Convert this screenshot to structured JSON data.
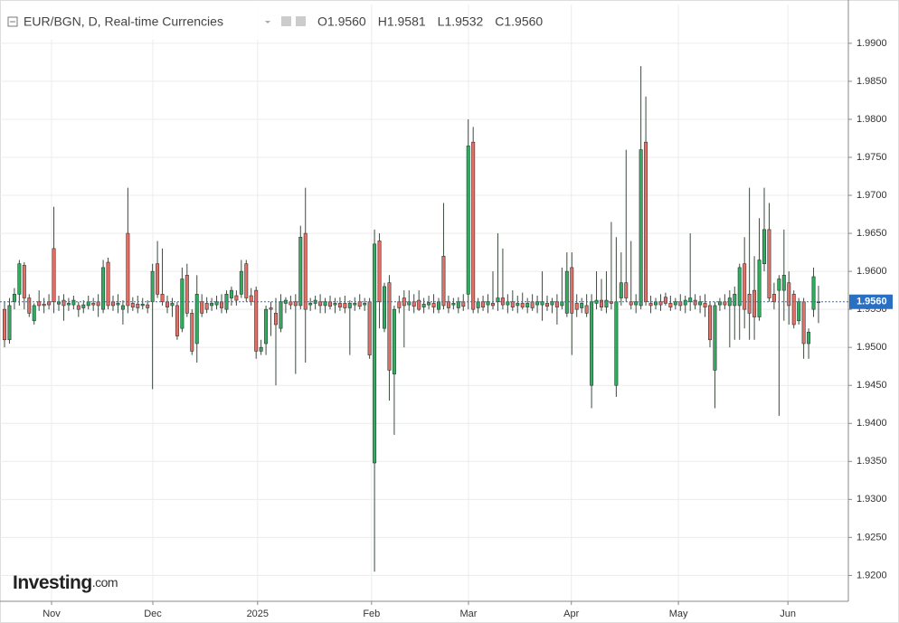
{
  "chart_data": {
    "type": "candlestick",
    "title": "EUR/BGN, D, Real-time Currencies",
    "header_values": [
      "O1.9560",
      "H1.9581",
      "L1.9532",
      "C1.9560"
    ],
    "logo": "Investing",
    "logo_suffix": ".com",
    "up_color": "#2fae5f",
    "down_color": "#e66f63",
    "grid": true,
    "last_price": {
      "value": 1.956,
      "label": "1.9560"
    },
    "xlim": [
      -0.917,
      171.05
    ],
    "xticks": [
      {
        "value": 9.53,
        "label": "Nov"
      },
      {
        "value": 30.07,
        "label": "Dec"
      },
      {
        "value": 51.3,
        "label": "2025"
      },
      {
        "value": 74.4,
        "label": "Feb"
      },
      {
        "value": 94.05,
        "label": "Mar"
      },
      {
        "value": 114.9,
        "label": "Apr"
      },
      {
        "value": 136.6,
        "label": "May"
      },
      {
        "value": 158.8,
        "label": "Jun"
      }
    ],
    "ylim": [
      1.9166,
      1.9951
    ],
    "yticks": [
      {
        "value": 1.92,
        "label": "1.9200"
      },
      {
        "value": 1.925,
        "label": "1.9250"
      },
      {
        "value": 1.93,
        "label": "1.9300"
      },
      {
        "value": 1.935,
        "label": "1.9350"
      },
      {
        "value": 1.94,
        "label": "1.9400"
      },
      {
        "value": 1.945,
        "label": "1.9450"
      },
      {
        "value": 1.95,
        "label": "1.9500"
      },
      {
        "value": 1.955,
        "label": "1.9550"
      },
      {
        "value": 1.96,
        "label": "1.9600"
      },
      {
        "value": 1.965,
        "label": "1.9650"
      },
      {
        "value": 1.97,
        "label": "1.9700"
      },
      {
        "value": 1.975,
        "label": "1.9750"
      },
      {
        "value": 1.98,
        "label": "1.9800"
      },
      {
        "value": 1.985,
        "label": "1.9850"
      },
      {
        "value": 1.99,
        "label": "1.9900"
      }
    ],
    "candles": [
      [
        1.955,
        1.956,
        1.95,
        1.951
      ],
      [
        1.951,
        1.9565,
        1.9505,
        1.9555
      ],
      [
        1.956,
        1.9578,
        1.955,
        1.957
      ],
      [
        1.957,
        1.9615,
        1.9555,
        1.961
      ],
      [
        1.9608,
        1.9612,
        1.955,
        1.9565
      ],
      [
        1.9565,
        1.957,
        1.954,
        1.9545
      ],
      [
        1.9535,
        1.9558,
        1.953,
        1.9555
      ],
      [
        1.956,
        1.9575,
        1.9548,
        1.9555
      ],
      [
        1.9557,
        1.9565,
        1.9545,
        1.9555
      ],
      [
        1.956,
        1.957,
        1.955,
        1.9556
      ],
      [
        1.963,
        1.9685,
        1.9545,
        1.956
      ],
      [
        1.9557,
        1.9568,
        1.9548,
        1.956
      ],
      [
        1.9562,
        1.957,
        1.9535,
        1.9555
      ],
      [
        1.9556,
        1.9565,
        1.9548,
        1.9558
      ],
      [
        1.9556,
        1.9568,
        1.955,
        1.9562
      ],
      [
        1.9555,
        1.956,
        1.954,
        1.955
      ],
      [
        1.9552,
        1.9562,
        1.9545,
        1.9556
      ],
      [
        1.9555,
        1.9568,
        1.955,
        1.956
      ],
      [
        1.9558,
        1.9565,
        1.9548,
        1.9556
      ],
      [
        1.956,
        1.957,
        1.954,
        1.9555
      ],
      [
        1.955,
        1.9615,
        1.9545,
        1.9605
      ],
      [
        1.9612,
        1.9618,
        1.955,
        1.9555
      ],
      [
        1.956,
        1.9568,
        1.9548,
        1.9555
      ],
      [
        1.9556,
        1.957,
        1.9545,
        1.9558
      ],
      [
        1.955,
        1.9562,
        1.953,
        1.9555
      ],
      [
        1.965,
        1.971,
        1.9545,
        1.9555
      ],
      [
        1.9558,
        1.9566,
        1.9548,
        1.9553
      ],
      [
        1.9557,
        1.9568,
        1.9545,
        1.9552
      ],
      [
        1.9555,
        1.9565,
        1.955,
        1.9557
      ],
      [
        1.9556,
        1.9562,
        1.9545,
        1.9552
      ],
      [
        1.956,
        1.961,
        1.9445,
        1.96
      ],
      [
        1.961,
        1.964,
        1.9565,
        1.957
      ],
      [
        1.957,
        1.963,
        1.9555,
        1.956
      ],
      [
        1.956,
        1.9568,
        1.9545,
        1.9553
      ],
      [
        1.9555,
        1.9565,
        1.954,
        1.9558
      ],
      [
        1.9555,
        1.956,
        1.951,
        1.9515
      ],
      [
        1.9525,
        1.9605,
        1.952,
        1.959
      ],
      [
        1.9595,
        1.961,
        1.954,
        1.9545
      ],
      [
        1.9545,
        1.955,
        1.949,
        1.9495
      ],
      [
        1.9505,
        1.9595,
        1.948,
        1.957
      ],
      [
        1.956,
        1.957,
        1.954,
        1.9545
      ],
      [
        1.9558,
        1.9566,
        1.9545,
        1.955
      ],
      [
        1.9555,
        1.9565,
        1.9548,
        1.9558
      ],
      [
        1.9556,
        1.9568,
        1.955,
        1.956
      ],
      [
        1.956,
        1.957,
        1.9545,
        1.9552
      ],
      [
        1.955,
        1.9575,
        1.9545,
        1.957
      ],
      [
        1.9565,
        1.958,
        1.9555,
        1.9575
      ],
      [
        1.9568,
        1.9575,
        1.9555,
        1.9562
      ],
      [
        1.957,
        1.9615,
        1.9565,
        1.96
      ],
      [
        1.961,
        1.9615,
        1.956,
        1.9565
      ],
      [
        1.9568,
        1.9578,
        1.9555,
        1.956
      ],
      [
        1.9575,
        1.958,
        1.9485,
        1.9495
      ],
      [
        1.9495,
        1.951,
        1.949,
        1.95
      ],
      [
        1.9505,
        1.9555,
        1.949,
        1.955
      ],
      [
        1.9552,
        1.956,
        1.9515,
        1.955
      ],
      [
        1.9545,
        1.9565,
        1.945,
        1.953
      ],
      [
        1.9525,
        1.957,
        1.952,
        1.956
      ],
      [
        1.9558,
        1.9566,
        1.9545,
        1.9562
      ],
      [
        1.956,
        1.9568,
        1.955,
        1.9556
      ],
      [
        1.956,
        1.957,
        1.9465,
        1.9555
      ],
      [
        1.9555,
        1.966,
        1.955,
        1.9645
      ],
      [
        1.965,
        1.971,
        1.948,
        1.955
      ],
      [
        1.9556,
        1.9565,
        1.9548,
        1.9558
      ],
      [
        1.9558,
        1.9568,
        1.955,
        1.9562
      ],
      [
        1.956,
        1.957,
        1.9545,
        1.9555
      ],
      [
        1.9555,
        1.9565,
        1.9545,
        1.956
      ],
      [
        1.956,
        1.9568,
        1.955,
        1.9554
      ],
      [
        1.9556,
        1.9565,
        1.9545,
        1.9558
      ],
      [
        1.9558,
        1.9566,
        1.9548,
        1.9553
      ],
      [
        1.9558,
        1.9568,
        1.9545,
        1.9552
      ],
      [
        1.9552,
        1.9562,
        1.949,
        1.9558
      ],
      [
        1.9556,
        1.9566,
        1.9548,
        1.9558
      ],
      [
        1.956,
        1.957,
        1.955,
        1.9554
      ],
      [
        1.9556,
        1.9565,
        1.9548,
        1.9558
      ],
      [
        1.956,
        1.9565,
        1.9485,
        1.949
      ],
      [
        1.9348,
        1.9655,
        1.9205,
        1.9636
      ],
      [
        1.964,
        1.965,
        1.9525,
        1.956
      ],
      [
        1.9525,
        1.9585,
        1.952,
        1.958
      ],
      [
        1.9585,
        1.9595,
        1.943,
        1.947
      ],
      [
        1.9465,
        1.9555,
        1.9385,
        1.955
      ],
      [
        1.956,
        1.9568,
        1.9545,
        1.9552
      ],
      [
        1.9565,
        1.9575,
        1.95,
        1.9555
      ],
      [
        1.9556,
        1.9575,
        1.9548,
        1.956
      ],
      [
        1.956,
        1.957,
        1.9545,
        1.9554
      ],
      [
        1.9562,
        1.9575,
        1.9548,
        1.955
      ],
      [
        1.9553,
        1.9565,
        1.9545,
        1.9557
      ],
      [
        1.9556,
        1.9568,
        1.955,
        1.9559
      ],
      [
        1.9558,
        1.957,
        1.9545,
        1.9553
      ],
      [
        1.955,
        1.9565,
        1.9545,
        1.956
      ],
      [
        1.962,
        1.969,
        1.955,
        1.9555
      ],
      [
        1.956,
        1.9568,
        1.9545,
        1.9552
      ],
      [
        1.9556,
        1.9565,
        1.955,
        1.9558
      ],
      [
        1.9552,
        1.9566,
        1.9545,
        1.956
      ],
      [
        1.956,
        1.957,
        1.9548,
        1.9554
      ],
      [
        1.957,
        1.98,
        1.955,
        1.9765
      ],
      [
        1.977,
        1.979,
        1.9545,
        1.955
      ],
      [
        1.9552,
        1.9565,
        1.9545,
        1.956
      ],
      [
        1.956,
        1.9568,
        1.9548,
        1.9553
      ],
      [
        1.9556,
        1.957,
        1.9545,
        1.956
      ],
      [
        1.9558,
        1.96,
        1.955,
        1.9555
      ],
      [
        1.956,
        1.965,
        1.9548,
        1.9565
      ],
      [
        1.9565,
        1.963,
        1.955,
        1.9556
      ],
      [
        1.9556,
        1.957,
        1.9545,
        1.956
      ],
      [
        1.956,
        1.9575,
        1.9548,
        1.9553
      ],
      [
        1.9555,
        1.9568,
        1.9545,
        1.9558
      ],
      [
        1.9558,
        1.9572,
        1.955,
        1.9553
      ],
      [
        1.9553,
        1.9565,
        1.9545,
        1.9558
      ],
      [
        1.956,
        1.957,
        1.9548,
        1.9552
      ],
      [
        1.9556,
        1.9568,
        1.9545,
        1.956
      ],
      [
        1.9556,
        1.96,
        1.9535,
        1.956
      ],
      [
        1.9558,
        1.9568,
        1.9548,
        1.9554
      ],
      [
        1.9556,
        1.9565,
        1.9545,
        1.956
      ],
      [
        1.956,
        1.957,
        1.953,
        1.9553
      ],
      [
        1.9555,
        1.9605,
        1.955,
        1.956
      ],
      [
        1.9545,
        1.9625,
        1.954,
        1.96
      ],
      [
        1.9605,
        1.9625,
        1.949,
        1.9545
      ],
      [
        1.9558,
        1.957,
        1.954,
        1.955
      ],
      [
        1.9552,
        1.9565,
        1.9545,
        1.9558
      ],
      [
        1.9555,
        1.957,
        1.954,
        1.9545
      ],
      [
        1.945,
        1.957,
        1.942,
        1.956
      ],
      [
        1.9558,
        1.96,
        1.955,
        1.9562
      ],
      [
        1.9562,
        1.959,
        1.9548,
        1.9553
      ],
      [
        1.9553,
        1.96,
        1.9545,
        1.9562
      ],
      [
        1.956,
        1.9665,
        1.955,
        1.9558
      ],
      [
        1.945,
        1.9645,
        1.9435,
        1.956
      ],
      [
        1.9565,
        1.9625,
        1.9555,
        1.9585
      ],
      [
        1.9585,
        1.976,
        1.956,
        1.9565
      ],
      [
        1.956,
        1.964,
        1.955,
        1.9556
      ],
      [
        1.9556,
        1.957,
        1.9545,
        1.956
      ],
      [
        1.9555,
        1.987,
        1.955,
        1.976
      ],
      [
        1.977,
        1.983,
        1.9555,
        1.956
      ],
      [
        1.9558,
        1.9568,
        1.9545,
        1.9555
      ],
      [
        1.9556,
        1.9565,
        1.955,
        1.956
      ],
      [
        1.956,
        1.957,
        1.9548,
        1.9556
      ],
      [
        1.9566,
        1.9572,
        1.9555,
        1.9558
      ],
      [
        1.9558,
        1.9568,
        1.9548,
        1.9553
      ],
      [
        1.9556,
        1.9565,
        1.955,
        1.956
      ],
      [
        1.956,
        1.957,
        1.9548,
        1.9555
      ],
      [
        1.9556,
        1.9568,
        1.9545,
        1.9562
      ],
      [
        1.956,
        1.965,
        1.9548,
        1.9565
      ],
      [
        1.9562,
        1.957,
        1.955,
        1.9556
      ],
      [
        1.9556,
        1.9568,
        1.9545,
        1.956
      ],
      [
        1.9558,
        1.957,
        1.954,
        1.9553
      ],
      [
        1.9555,
        1.956,
        1.95,
        1.951
      ],
      [
        1.947,
        1.956,
        1.942,
        1.9555
      ],
      [
        1.9556,
        1.9565,
        1.9548,
        1.956
      ],
      [
        1.956,
        1.957,
        1.955,
        1.9556
      ],
      [
        1.9555,
        1.9575,
        1.95,
        1.9565
      ],
      [
        1.9555,
        1.958,
        1.951,
        1.957
      ],
      [
        1.9555,
        1.961,
        1.951,
        1.9605
      ],
      [
        1.961,
        1.9645,
        1.9525,
        1.955
      ],
      [
        1.957,
        1.971,
        1.951,
        1.9545
      ],
      [
        1.9575,
        1.962,
        1.951,
        1.954
      ],
      [
        1.954,
        1.967,
        1.9535,
        1.9615
      ],
      [
        1.961,
        1.971,
        1.96,
        1.9655
      ],
      [
        1.9655,
        1.969,
        1.956,
        1.9565
      ],
      [
        1.957,
        1.9585,
        1.955,
        1.956
      ],
      [
        1.9575,
        1.9595,
        1.941,
        1.959
      ],
      [
        1.9575,
        1.9655,
        1.9535,
        1.9595
      ],
      [
        1.9585,
        1.96,
        1.953,
        1.9555
      ],
      [
        1.957,
        1.9575,
        1.9525,
        1.953
      ],
      [
        1.9535,
        1.9565,
        1.953,
        1.956
      ],
      [
        1.956,
        1.9565,
        1.9485,
        1.9505
      ],
      [
        1.9505,
        1.9525,
        1.9485,
        1.952
      ],
      [
        1.955,
        1.9605,
        1.954,
        1.9593
      ],
      [
        1.956,
        1.9581,
        1.9532,
        1.956
      ]
    ]
  }
}
